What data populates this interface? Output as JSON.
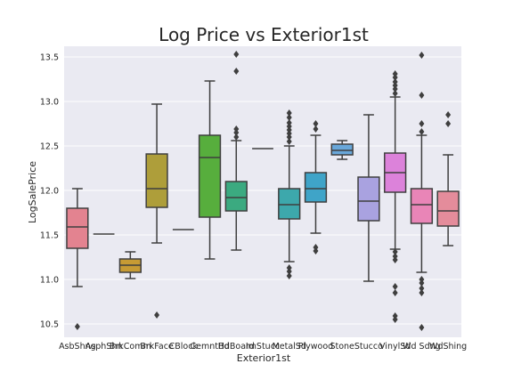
{
  "chart_data": {
    "type": "box",
    "title": "Log Price vs Exterior1st",
    "xlabel": "Exterior1st",
    "ylabel": "LogSalePrice",
    "ylim": [
      10.35,
      13.62
    ],
    "yticks": [
      10.5,
      11.0,
      11.5,
      12.0,
      12.5,
      13.0,
      13.5
    ],
    "ytick_labels": [
      "10.5",
      "11.0",
      "11.5",
      "12.0",
      "12.5",
      "13.0",
      "13.5"
    ],
    "grid": true,
    "legend": "none",
    "categories": [
      "AsbShng",
      "AsphShn",
      "BrkComm",
      "BrkFace",
      "CBlock",
      "CemntBd",
      "HdBoard",
      "ImStucc",
      "MetalSd",
      "Plywood",
      "Stone",
      "Stucco",
      "VinylSd",
      "Wd Sdng",
      "WdShing"
    ],
    "colors": [
      "#E38390",
      "#DD8B45",
      "#C79B34",
      "#AE9E3A",
      "#8BA737",
      "#57AE3D",
      "#3BAA80",
      "#3FA99C",
      "#3DA8AC",
      "#3FA4C8",
      "#69A7D9",
      "#A9A2E0",
      "#DC82DA",
      "#E985B7",
      "#E48C9B"
    ],
    "boxes": [
      {
        "q1": 11.35,
        "median": 11.59,
        "q3": 11.8,
        "whisker_low": 10.92,
        "whisker_high": 12.02,
        "outliers": [
          10.47
        ]
      },
      {
        "q1": 11.51,
        "median": 11.51,
        "q3": 11.51,
        "whisker_low": 11.51,
        "whisker_high": 11.51,
        "outliers": []
      },
      {
        "q1": 11.08,
        "median": 11.16,
        "q3": 11.23,
        "whisker_low": 11.01,
        "whisker_high": 11.31,
        "outliers": []
      },
      {
        "q1": 11.81,
        "median": 12.02,
        "q3": 12.41,
        "whisker_low": 11.41,
        "whisker_high": 12.97,
        "outliers": [
          10.6
        ]
      },
      {
        "q1": 11.56,
        "median": 11.56,
        "q3": 11.56,
        "whisker_low": 11.56,
        "whisker_high": 11.56,
        "outliers": []
      },
      {
        "q1": 11.7,
        "median": 12.37,
        "q3": 12.62,
        "whisker_low": 11.23,
        "whisker_high": 13.23,
        "outliers": []
      },
      {
        "q1": 11.77,
        "median": 11.92,
        "q3": 12.1,
        "whisker_low": 11.33,
        "whisker_high": 12.56,
        "outliers": [
          12.6,
          12.65,
          12.69,
          13.34,
          13.53
        ]
      },
      {
        "q1": 12.47,
        "median": 12.47,
        "q3": 12.47,
        "whisker_low": 12.47,
        "whisker_high": 12.47,
        "outliers": []
      },
      {
        "q1": 11.68,
        "median": 11.84,
        "q3": 12.02,
        "whisker_low": 11.2,
        "whisker_high": 12.5,
        "outliers": [
          11.04,
          11.09,
          11.13,
          12.55,
          12.6,
          12.64,
          12.68,
          12.72,
          12.76,
          12.82,
          12.87
        ]
      },
      {
        "q1": 11.87,
        "median": 12.02,
        "q3": 12.2,
        "whisker_low": 11.52,
        "whisker_high": 12.62,
        "outliers": [
          11.32,
          11.36,
          12.69,
          12.75
        ]
      },
      {
        "q1": 12.4,
        "median": 12.45,
        "q3": 12.52,
        "whisker_low": 12.35,
        "whisker_high": 12.56,
        "outliers": []
      },
      {
        "q1": 11.66,
        "median": 11.88,
        "q3": 12.15,
        "whisker_low": 10.98,
        "whisker_high": 12.85,
        "outliers": []
      },
      {
        "q1": 11.98,
        "median": 12.2,
        "q3": 12.42,
        "whisker_low": 11.34,
        "whisker_high": 13.05,
        "outliers": [
          10.55,
          10.59,
          10.85,
          10.92,
          11.22,
          11.26,
          11.31,
          13.09,
          13.14,
          13.18,
          13.22,
          13.27,
          13.31
        ]
      },
      {
        "q1": 11.63,
        "median": 11.84,
        "q3": 12.02,
        "whisker_low": 11.08,
        "whisker_high": 12.62,
        "outliers": [
          10.46,
          10.85,
          10.9,
          10.96,
          11.0,
          12.66,
          12.75,
          13.07,
          13.52
        ]
      },
      {
        "q1": 11.6,
        "median": 11.77,
        "q3": 11.99,
        "whisker_low": 11.38,
        "whisker_high": 12.4,
        "outliers": [
          12.75,
          12.85
        ]
      }
    ]
  }
}
